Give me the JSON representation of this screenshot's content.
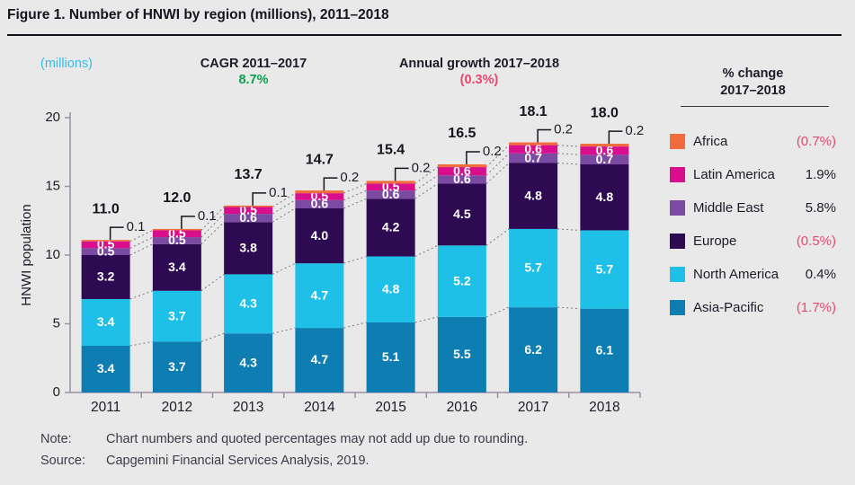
{
  "title": "Figure 1. Number of HNWI by region (millions), 2011–2018",
  "header": {
    "units_label": "(millions)",
    "cagr_label": "CAGR 2011–2017",
    "cagr_value": "8.7%",
    "growth_label": "Annual growth 2017–2018",
    "growth_value": "(0.3%)"
  },
  "legend": {
    "header_line1": "% change",
    "header_line2": "2017–2018",
    "items": [
      {
        "label": "Africa",
        "change": "(0.7%)",
        "negative": true,
        "color": "#f26b3c"
      },
      {
        "label": "Latin America",
        "change": "1.9%",
        "negative": false,
        "color": "#d90e8c"
      },
      {
        "label": "Middle East",
        "change": "5.8%",
        "negative": false,
        "color": "#7b4aa2"
      },
      {
        "label": "Europe",
        "change": "(0.5%)",
        "negative": true,
        "color": "#2e0a52"
      },
      {
        "label": "North America",
        "change": "0.4%",
        "negative": false,
        "color": "#1ec0e8"
      },
      {
        "label": "Asia-Pacific",
        "change": "(1.7%)",
        "negative": true,
        "color": "#0e7db2"
      }
    ]
  },
  "chart_data": {
    "type": "bar",
    "stacked": true,
    "title": "Number of HNWI by region (millions), 2011–2018",
    "xlabel": "",
    "ylabel": "HNWI population",
    "ylim": [
      0,
      20
    ],
    "y_ticks": [
      0,
      5,
      10,
      15,
      20
    ],
    "grid": false,
    "legend_position": "right",
    "categories": [
      "2011",
      "2012",
      "2013",
      "2014",
      "2015",
      "2016",
      "2017",
      "2018"
    ],
    "totals": [
      "11.0",
      "12.0",
      "13.7",
      "14.7",
      "15.4",
      "16.5",
      "18.1",
      "18.0"
    ],
    "series": [
      {
        "name": "Asia-Pacific",
        "color": "#0e7db2",
        "values": [
          3.4,
          3.7,
          4.3,
          4.7,
          5.1,
          5.5,
          6.2,
          6.1
        ]
      },
      {
        "name": "North America",
        "color": "#1ec0e8",
        "values": [
          3.4,
          3.7,
          4.3,
          4.7,
          4.8,
          5.2,
          5.7,
          5.7
        ]
      },
      {
        "name": "Europe",
        "color": "#2e0a52",
        "values": [
          3.2,
          3.4,
          3.8,
          4.0,
          4.2,
          4.5,
          4.8,
          4.8
        ]
      },
      {
        "name": "Middle East",
        "color": "#7b4aa2",
        "values": [
          0.5,
          0.5,
          0.6,
          0.6,
          0.6,
          0.6,
          0.7,
          0.7
        ]
      },
      {
        "name": "Latin America",
        "color": "#d90e8c",
        "values": [
          0.5,
          0.5,
          0.5,
          0.5,
          0.5,
          0.6,
          0.6,
          0.6
        ]
      },
      {
        "name": "Africa",
        "color": "#f26b3c",
        "values": [
          0.1,
          0.1,
          0.1,
          0.2,
          0.2,
          0.2,
          0.2,
          0.2
        ],
        "label_style": "callout"
      }
    ]
  },
  "footer": {
    "note_label": "Note:",
    "note_text": "Chart numbers and quoted percentages may not add up due to rounding.",
    "source_label": "Source:",
    "source_text": "Capgemini Financial Services Analysis, 2019."
  },
  "colors": {
    "background": "#e9e9e9",
    "axis": "#9a8fa4",
    "dotted_connector": "#7a7a7a",
    "positive_green": "#0ba04e",
    "negative_pink": "#e8486e",
    "units_cyan": "#34bce8",
    "text_dark": "#1c1c28"
  }
}
